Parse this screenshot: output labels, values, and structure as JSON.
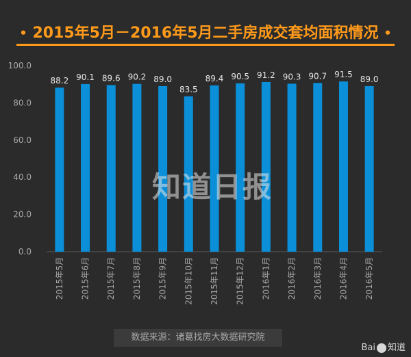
{
  "title": "2015年5月－2016年5月二手房成交套均面积情况",
  "title_bullet": "•",
  "source_text": "数据来源：诸葛找房大数据研究院",
  "watermark_text": "知道日报",
  "logo": {
    "left": "Bai",
    "right": "知道"
  },
  "colors": {
    "bar": "#0a8fd8",
    "title": "#ff9a1a",
    "background": "#2b2b2b",
    "text": "#d0d0d0",
    "axis_text": "#a8a8a8"
  },
  "chart_data": {
    "type": "bar",
    "title": "2015年5月－2016年5月二手房成交套均面积情况",
    "xlabel": "",
    "ylabel": "",
    "ylim": [
      0,
      100
    ],
    "yticks": [
      "0.0",
      "20.0",
      "40.0",
      "60.0",
      "80.0",
      "100.0"
    ],
    "grid": false,
    "categories": [
      "2015年5月",
      "2015年6月",
      "2015年7月",
      "2015年8月",
      "2015年9月",
      "2015年10月",
      "2015年11月",
      "2015年12月",
      "2016年1月",
      "2016年2月",
      "2016年3月",
      "2016年4月",
      "2016年5月"
    ],
    "values": [
      88.2,
      90.1,
      89.6,
      90.2,
      89.0,
      83.5,
      89.4,
      90.5,
      91.2,
      90.3,
      90.7,
      91.5,
      89.0
    ],
    "value_labels": [
      "88.2",
      "90.1",
      "89.6",
      "90.2",
      "89.0",
      "83.5",
      "89.4",
      "90.5",
      "91.2",
      "90.3",
      "90.7",
      "91.5",
      "89.0"
    ]
  }
}
